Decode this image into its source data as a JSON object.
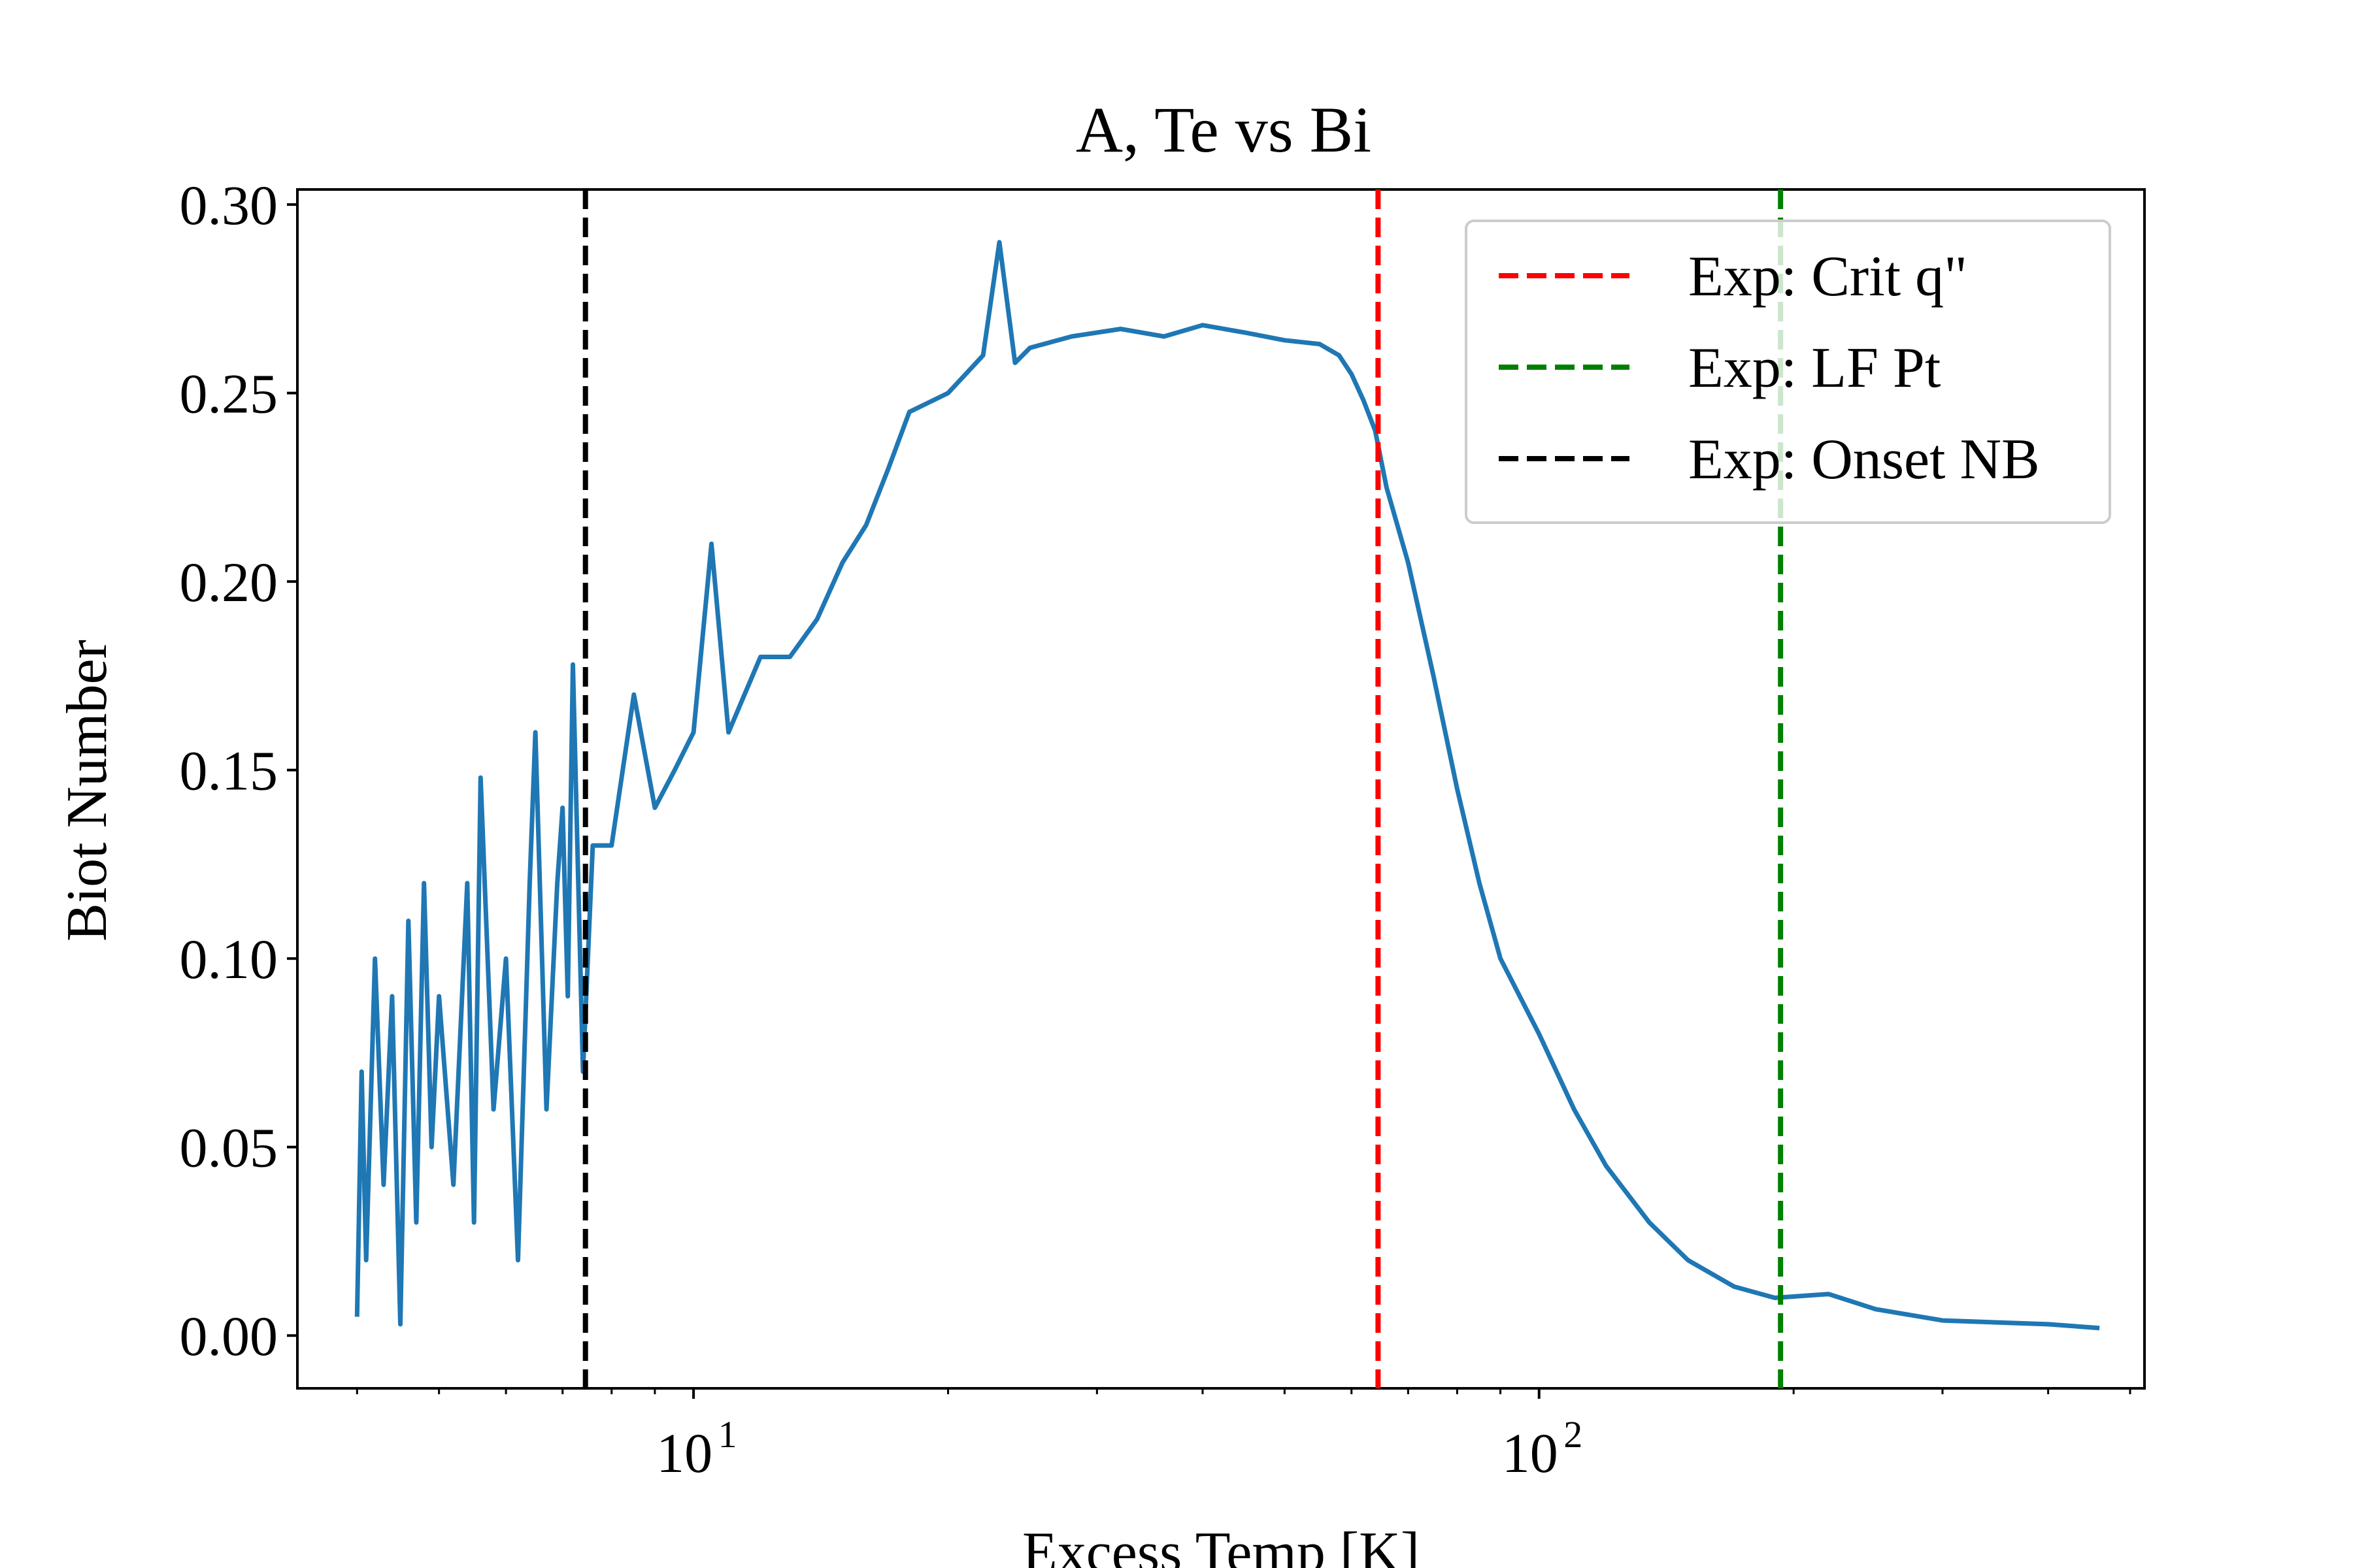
{
  "chart_data": {
    "type": "line",
    "title": "A, Te vs Bi",
    "xlabel": "Excess Temp [K]",
    "ylabel": "Biot Number",
    "xscale": "log",
    "xlim": [
      3.4,
      520
    ],
    "ylim": [
      -0.014,
      0.304
    ],
    "grid": false,
    "legend_position": "top-right",
    "x_ticks": [
      {
        "value": 10,
        "base": "10",
        "exp": "1"
      },
      {
        "value": 100,
        "base": "10",
        "exp": "2"
      }
    ],
    "y_ticks": [
      "0.00",
      "0.05",
      "0.10",
      "0.15",
      "0.20",
      "0.25",
      "0.30"
    ],
    "series_color": "#1f77b4",
    "series_anchors": [
      [
        4.0,
        0.005
      ],
      [
        4.05,
        0.07
      ],
      [
        4.1,
        0.02
      ],
      [
        4.2,
        0.1
      ],
      [
        4.3,
        0.04
      ],
      [
        4.4,
        0.09
      ],
      [
        4.5,
        0.003
      ],
      [
        4.6,
        0.11
      ],
      [
        4.7,
        0.03
      ],
      [
        4.8,
        0.12
      ],
      [
        4.9,
        0.05
      ],
      [
        5.0,
        0.09
      ],
      [
        5.2,
        0.04
      ],
      [
        5.4,
        0.12
      ],
      [
        5.5,
        0.03
      ],
      [
        5.6,
        0.148
      ],
      [
        5.8,
        0.06
      ],
      [
        6.0,
        0.1
      ],
      [
        6.2,
        0.02
      ],
      [
        6.4,
        0.12
      ],
      [
        6.5,
        0.16
      ],
      [
        6.7,
        0.06
      ],
      [
        6.9,
        0.12
      ],
      [
        7.0,
        0.14
      ],
      [
        7.1,
        0.09
      ],
      [
        7.2,
        0.178
      ],
      [
        7.4,
        0.07
      ],
      [
        7.6,
        0.13
      ],
      [
        8.0,
        0.13
      ],
      [
        8.5,
        0.17
      ],
      [
        9.0,
        0.14
      ],
      [
        9.5,
        0.15
      ],
      [
        10.0,
        0.16
      ],
      [
        10.5,
        0.21
      ],
      [
        11.0,
        0.16
      ],
      [
        12.0,
        0.18
      ],
      [
        13.0,
        0.18
      ],
      [
        14.0,
        0.19
      ],
      [
        15.0,
        0.205
      ],
      [
        16.0,
        0.215
      ],
      [
        17.0,
        0.23
      ],
      [
        18.0,
        0.245
      ],
      [
        20.0,
        0.25
      ],
      [
        22.0,
        0.26
      ],
      [
        23.0,
        0.29
      ],
      [
        24.0,
        0.258
      ],
      [
        25.0,
        0.262
      ],
      [
        28.0,
        0.265
      ],
      [
        32.0,
        0.267
      ],
      [
        36.0,
        0.265
      ],
      [
        40.0,
        0.268
      ],
      [
        45.0,
        0.266
      ],
      [
        50.0,
        0.264
      ],
      [
        55.0,
        0.263
      ],
      [
        58.0,
        0.26
      ],
      [
        60.0,
        0.255
      ],
      [
        62.0,
        0.248
      ],
      [
        64.0,
        0.24
      ],
      [
        66.0,
        0.225
      ],
      [
        70.0,
        0.205
      ],
      [
        75.0,
        0.175
      ],
      [
        80.0,
        0.145
      ],
      [
        85.0,
        0.12
      ],
      [
        90.0,
        0.1
      ],
      [
        100.0,
        0.08
      ],
      [
        110.0,
        0.06
      ],
      [
        120.0,
        0.045
      ],
      [
        135.0,
        0.03
      ],
      [
        150.0,
        0.02
      ],
      [
        170.0,
        0.013
      ],
      [
        190.0,
        0.01
      ],
      [
        220.0,
        0.011
      ],
      [
        250.0,
        0.007
      ],
      [
        300.0,
        0.004
      ],
      [
        400.0,
        0.003
      ],
      [
        460.0,
        0.002
      ]
    ],
    "vlines": [
      {
        "name": "Exp: Crit q\"",
        "x": 64.5,
        "color": "#ff0000"
      },
      {
        "name": "Exp: LF Pt",
        "x": 193,
        "color": "#008000"
      },
      {
        "name": "Exp: Onset NB",
        "x": 7.45,
        "color": "#000000"
      }
    ]
  }
}
